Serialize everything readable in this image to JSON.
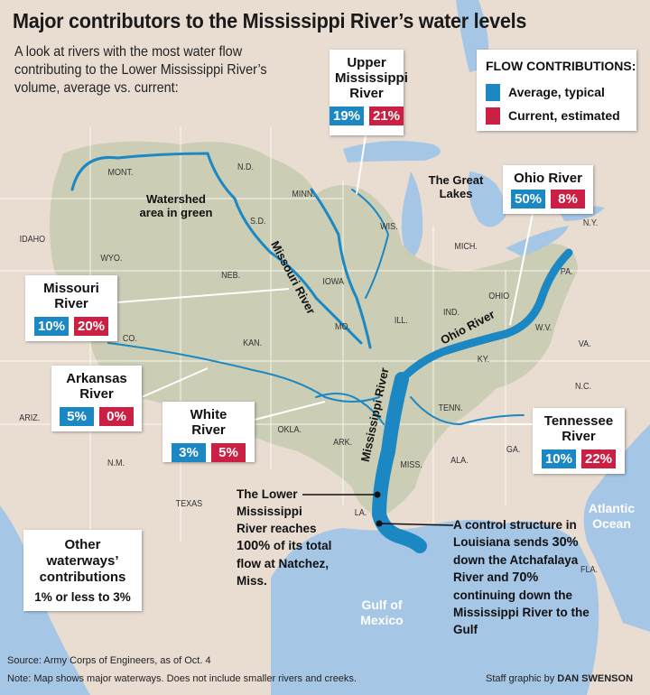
{
  "title": "Major contributors to the Mississippi River’s water levels",
  "subtitle": "A look at rivers with the most water flow contributing to the Lower Mississippi River’s volume, average vs. current:",
  "legend": {
    "title": "FLOW CONTRIBUTIONS:",
    "average": "Average, typical",
    "current": "Current, estimated",
    "average_color": "#1b88c4",
    "current_color": "#cc1f44"
  },
  "rivers": [
    {
      "name": "Upper Mississippi River",
      "average": "19%",
      "current": "21%"
    },
    {
      "name": "Ohio River",
      "average": "50%",
      "current": "8%"
    },
    {
      "name": "Missouri River",
      "average": "10%",
      "current": "20%"
    },
    {
      "name": "Arkansas River",
      "average": "5%",
      "current": "0%"
    },
    {
      "name": "White River",
      "average": "3%",
      "current": "5%"
    },
    {
      "name": "Tennessee River",
      "average": "10%",
      "current": "22%"
    }
  ],
  "other": {
    "name": "Other waterways’ contributions",
    "value": "1% or less to 3%"
  },
  "map_labels": {
    "watershed": "Watershed area in green",
    "great_lakes": "The Great Lakes",
    "missouri": "Missouri River",
    "ohio": "Ohio River",
    "mississippi": "Mississippi River",
    "gulf": "Gulf of Mexico",
    "atlantic": "Atlantic Ocean"
  },
  "states": [
    "MONT.",
    "N.D.",
    "MINN.",
    "WIS.",
    "MICH.",
    "N.Y.",
    "PA.",
    "OHIO",
    "IND.",
    "ILL.",
    "IOWA",
    "S.D.",
    "NEB.",
    "WYO.",
    "IDAHO",
    "CO.",
    "KAN.",
    "MO.",
    "KY.",
    "W.V.",
    "VA.",
    "N.C.",
    "TENN.",
    "ARK.",
    "OKLA.",
    "MISS.",
    "ALA.",
    "GA.",
    "ARIZ.",
    "N.M.",
    "TEXAS",
    "LA.",
    "FLA."
  ],
  "notes": {
    "natchez_pre": "The Lower Mississippi River reaches ",
    "natchez_bold": "100%",
    "natchez_post": " of its total flow at Natchez, Miss.",
    "control_pre": "A control structure in Louisiana sends ",
    "control_b1": "30%",
    "control_mid": " down the Atchafalaya River and ",
    "control_b2": "70%",
    "control_post": " continuing down the Mississippi River to the Gulf"
  },
  "footer": {
    "source": "Source: Army Corps of Engineers, as of Oct. 4",
    "note": "Note: Map shows major waterways. Does not include smaller rivers and creeks.",
    "credit_pre": "Staff graphic by ",
    "credit_name": "DAN SWENSON"
  },
  "colors": {
    "land": "#e9ddd2",
    "water": "#a6c6e6",
    "watershed": "#c9cbb3",
    "river": "#1b88c4"
  }
}
